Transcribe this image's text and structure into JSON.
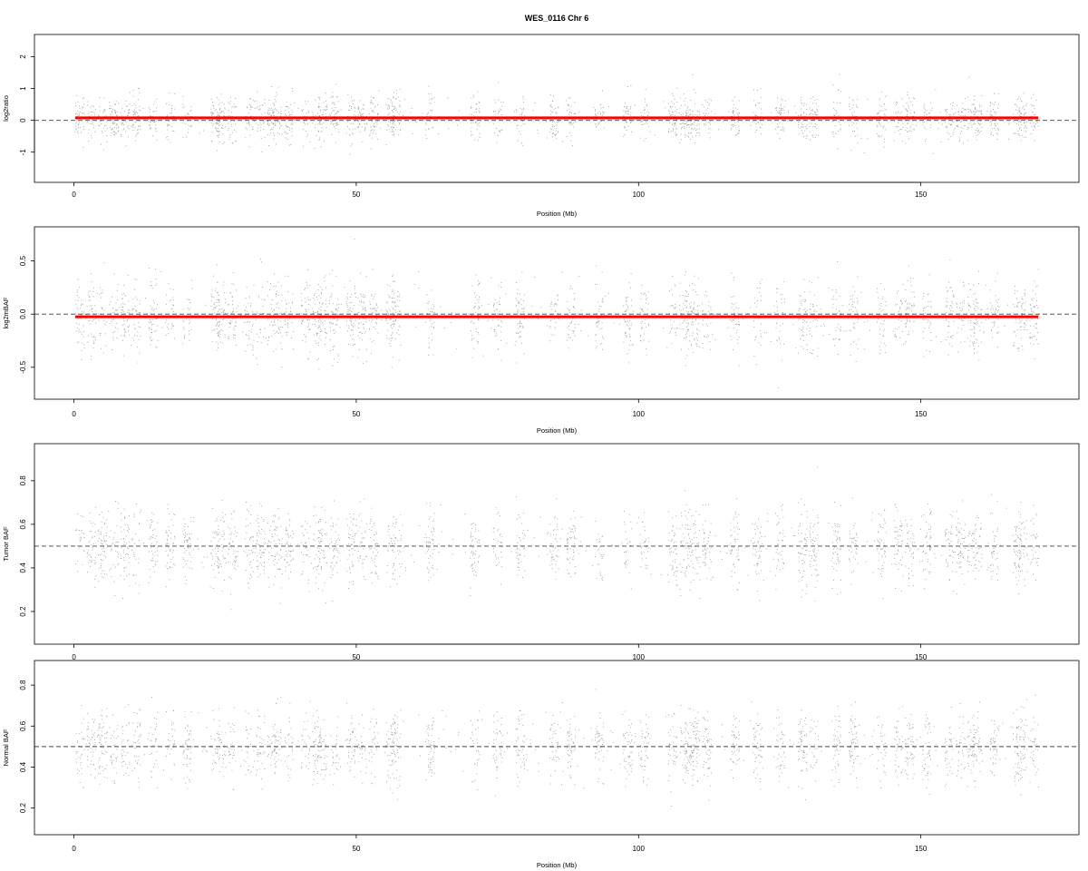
{
  "figure": {
    "title": "WES_0116 Chr 6",
    "colors": {
      "points": "#9a9a9a",
      "segment": "#ff0000",
      "reference_line": "#444444",
      "frame": "#000000"
    }
  },
  "chart_data": [
    {
      "type": "scatter",
      "title": "WES_0116 Chr 6",
      "xlabel": "Position (Mb)",
      "ylabel": "log2ratio",
      "xlim": [
        -7,
        178
      ],
      "ylim": [
        -1.95,
        2.7
      ],
      "xticks": [
        "0",
        "50",
        "100",
        "150"
      ],
      "yticks": [
        "-1",
        "0",
        "1",
        "2"
      ],
      "reference_line": 0,
      "segments": [
        {
          "x_start": 0.2,
          "x_end": 170.8,
          "y": 0.08
        }
      ],
      "series": [
        {
          "values_summary": "dense exon-level points, centered near 0.08, range about -1.3 to 2.5"
        }
      ]
    },
    {
      "type": "scatter",
      "xlabel": "Position (Mb)",
      "ylabel": "log2mBAF",
      "xlim": [
        -7,
        178
      ],
      "ylim": [
        -0.8,
        0.82
      ],
      "xticks": [
        "0",
        "50",
        "100",
        "150"
      ],
      "yticks": [
        "-0.5",
        "0.0",
        "0.5"
      ],
      "reference_line": 0,
      "segments": [
        {
          "x_start": 0.2,
          "x_end": 170.8,
          "y": -0.025
        }
      ],
      "series": [
        {
          "values_summary": "points centered near -0.02, range about -0.7 to 0.78"
        }
      ]
    },
    {
      "type": "scatter",
      "xlabel": "",
      "ylabel": "Tumor BAF",
      "xlim": [
        -7,
        178
      ],
      "ylim": [
        0.05,
        0.97
      ],
      "xticks": [
        "0",
        "50",
        "100",
        "150"
      ],
      "yticks": [
        "0.2",
        "0.4",
        "0.6",
        "0.8"
      ],
      "reference_line": 0.5,
      "series": [
        {
          "values_summary": "points centered near 0.5, range about 0.1 to 0.95"
        }
      ]
    },
    {
      "type": "scatter",
      "xlabel": "Position (Mb)",
      "ylabel": "Normal BAF",
      "xlim": [
        -7,
        178
      ],
      "ylim": [
        0.07,
        0.92
      ],
      "xticks": [
        "0",
        "50",
        "100",
        "150"
      ],
      "yticks": [
        "0.2",
        "0.4",
        "0.6",
        "0.8"
      ],
      "reference_line": 0.5,
      "series": [
        {
          "values_summary": "points centered near 0.5, range about 0.12 to 0.88"
        }
      ]
    }
  ]
}
